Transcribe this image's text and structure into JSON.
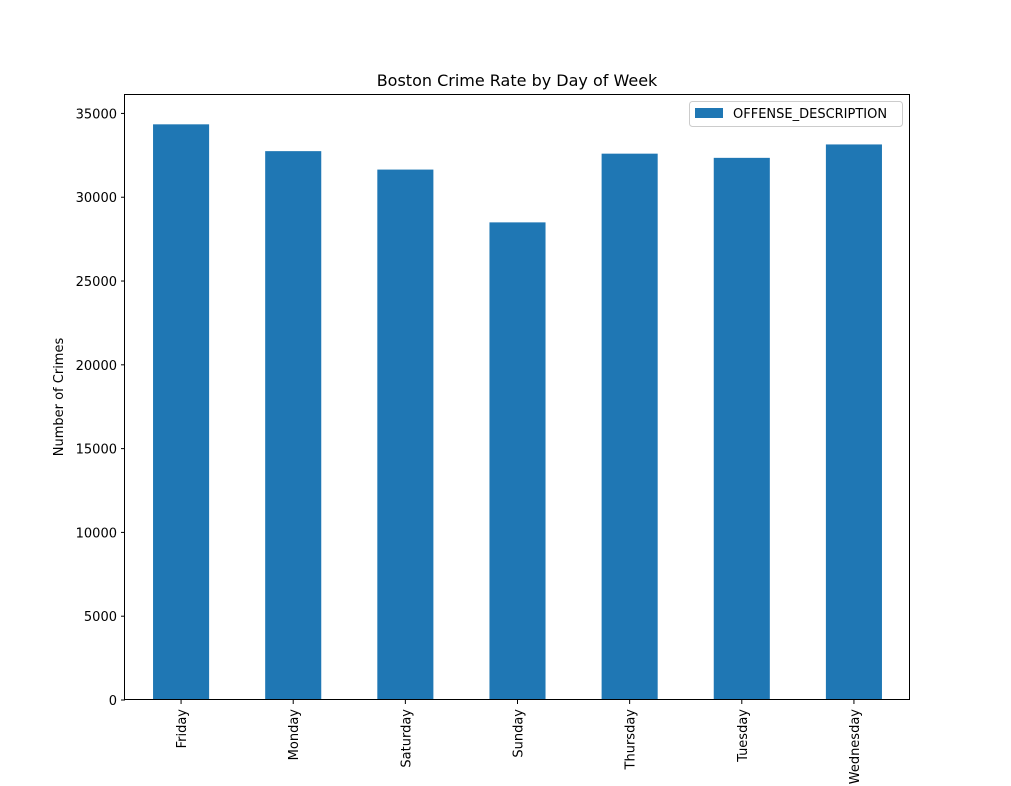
{
  "chart_data": {
    "type": "bar",
    "title": "Boston Crime Rate by Day of Week",
    "xlabel": "",
    "ylabel": "Number of Crimes",
    "categories": [
      "Friday",
      "Monday",
      "Saturday",
      "Sunday",
      "Thursday",
      "Tuesday",
      "Wednesday"
    ],
    "series": [
      {
        "name": "OFFENSE_DESCRIPTION",
        "values": [
          34350,
          32750,
          31650,
          28500,
          32600,
          32350,
          33150
        ],
        "color": "#1f77b4"
      }
    ],
    "ylim": [
      0,
      36100
    ],
    "yticks": [
      0,
      5000,
      10000,
      15000,
      20000,
      25000,
      30000,
      35000
    ],
    "grid": false,
    "legend": "top-right"
  }
}
